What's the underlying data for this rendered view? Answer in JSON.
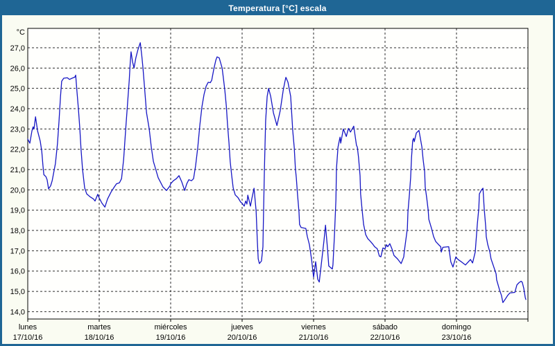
{
  "window": {
    "title": "Temperatura [°C] escala"
  },
  "colors": {
    "title_bar": "#1f6695",
    "frame_border": "#1f6695",
    "content_bg": "#fafcf2",
    "plot_bg": "#fffffd",
    "grid": "#2a2a2a",
    "axis": "#000000",
    "line": "#1515c4",
    "label_text": "#000000",
    "title_text": "#ffffff"
  },
  "chart_data": {
    "type": "line",
    "title": "Temperatura [°C] escala",
    "ylabel": "°C",
    "xlabel": "",
    "ylim": [
      14.0,
      27.0
    ],
    "xlim_hours": [
      0,
      168
    ],
    "grid": "dashed",
    "legend": "none",
    "yticks": [
      {
        "value": 27.0,
        "label": "27,0"
      },
      {
        "value": 26.0,
        "label": "26,0"
      },
      {
        "value": 25.0,
        "label": "25,0"
      },
      {
        "value": 24.0,
        "label": "24,0"
      },
      {
        "value": 23.0,
        "label": "23,0"
      },
      {
        "value": 22.0,
        "label": "22,0"
      },
      {
        "value": 21.0,
        "label": "21,0"
      },
      {
        "value": 20.0,
        "label": "20,0"
      },
      {
        "value": 19.0,
        "label": "19,0"
      },
      {
        "value": 18.0,
        "label": "18,0"
      },
      {
        "value": 17.0,
        "label": "17,0"
      },
      {
        "value": 16.0,
        "label": "16,0"
      },
      {
        "value": 15.0,
        "label": "15,0"
      },
      {
        "value": 14.0,
        "label": "14,0"
      }
    ],
    "xticks": [
      {
        "day": "lunes",
        "date": "17/10/16",
        "day_index": 0
      },
      {
        "day": "martes",
        "date": "18/10/16",
        "day_index": 1
      },
      {
        "day": "miércoles",
        "date": "19/10/16",
        "day_index": 2
      },
      {
        "day": "jueves",
        "date": "20/10/16",
        "day_index": 3
      },
      {
        "day": "viernes",
        "date": "21/10/16",
        "day_index": 4
      },
      {
        "day": "sábado",
        "date": "22/10/16",
        "day_index": 5
      },
      {
        "day": "domingo",
        "date": "23/10/16",
        "day_index": 6
      }
    ],
    "series": [
      {
        "name": "Temperatura",
        "unit": "°C",
        "points": [
          [
            0.0,
            22.5
          ],
          [
            0.7,
            22.3
          ],
          [
            1.4,
            22.9
          ],
          [
            1.8,
            23.1
          ],
          [
            2.1,
            23.0
          ],
          [
            2.6,
            23.6
          ],
          [
            3.3,
            22.9
          ],
          [
            4.2,
            22.4
          ],
          [
            4.7,
            21.9
          ],
          [
            5.1,
            21.2
          ],
          [
            5.4,
            20.75
          ],
          [
            6.1,
            20.65
          ],
          [
            6.5,
            20.5
          ],
          [
            7.0,
            20.05
          ],
          [
            7.7,
            20.2
          ],
          [
            8.2,
            20.45
          ],
          [
            9.3,
            21.3
          ],
          [
            10.0,
            22.3
          ],
          [
            10.5,
            23.4
          ],
          [
            11.0,
            24.6
          ],
          [
            11.4,
            25.35
          ],
          [
            12.1,
            25.5
          ],
          [
            13.3,
            25.52
          ],
          [
            14.0,
            25.44
          ],
          [
            14.9,
            25.5
          ],
          [
            15.8,
            25.55
          ],
          [
            16.1,
            25.65
          ],
          [
            16.5,
            24.9
          ],
          [
            17.0,
            24.0
          ],
          [
            17.5,
            23.0
          ],
          [
            17.9,
            22.0
          ],
          [
            18.4,
            21.0
          ],
          [
            19.1,
            20.1
          ],
          [
            19.8,
            19.8
          ],
          [
            21.0,
            19.65
          ],
          [
            22.1,
            19.55
          ],
          [
            22.6,
            19.45
          ],
          [
            23.5,
            19.78
          ],
          [
            24.0,
            19.6
          ],
          [
            24.9,
            19.35
          ],
          [
            25.9,
            19.15
          ],
          [
            26.8,
            19.55
          ],
          [
            28.0,
            19.9
          ],
          [
            29.1,
            20.15
          ],
          [
            29.8,
            20.3
          ],
          [
            30.8,
            20.35
          ],
          [
            31.5,
            20.55
          ],
          [
            32.2,
            21.5
          ],
          [
            32.9,
            23.0
          ],
          [
            33.7,
            24.6
          ],
          [
            34.1,
            25.4
          ],
          [
            34.4,
            26.2
          ],
          [
            34.7,
            26.8
          ],
          [
            35.2,
            26.3
          ],
          [
            35.7,
            26.0
          ],
          [
            36.3,
            26.5
          ],
          [
            37.0,
            26.9
          ],
          [
            37.8,
            27.25
          ],
          [
            38.3,
            26.6
          ],
          [
            38.7,
            26.0
          ],
          [
            39.2,
            25.1
          ],
          [
            39.9,
            23.8
          ],
          [
            40.8,
            23.0
          ],
          [
            41.5,
            22.1
          ],
          [
            42.2,
            21.4
          ],
          [
            43.1,
            20.95
          ],
          [
            43.8,
            20.6
          ],
          [
            44.5,
            20.4
          ],
          [
            45.4,
            20.15
          ],
          [
            46.6,
            19.97
          ],
          [
            47.8,
            20.2
          ],
          [
            48.0,
            20.3
          ],
          [
            48.9,
            20.45
          ],
          [
            49.9,
            20.55
          ],
          [
            50.8,
            20.7
          ],
          [
            51.7,
            20.4
          ],
          [
            52.7,
            19.97
          ],
          [
            53.4,
            20.3
          ],
          [
            54.1,
            20.5
          ],
          [
            55.0,
            20.45
          ],
          [
            55.7,
            20.55
          ],
          [
            56.4,
            21.2
          ],
          [
            57.1,
            22.1
          ],
          [
            57.8,
            23.2
          ],
          [
            58.5,
            24.1
          ],
          [
            59.2,
            24.7
          ],
          [
            59.9,
            25.1
          ],
          [
            60.6,
            25.3
          ],
          [
            61.3,
            25.28
          ],
          [
            61.8,
            25.4
          ],
          [
            62.5,
            25.95
          ],
          [
            63.2,
            26.4
          ],
          [
            63.6,
            26.55
          ],
          [
            64.3,
            26.5
          ],
          [
            64.8,
            26.25
          ],
          [
            65.3,
            26.0
          ],
          [
            65.7,
            25.5
          ],
          [
            66.2,
            24.9
          ],
          [
            66.7,
            24.1
          ],
          [
            67.1,
            23.2
          ],
          [
            67.6,
            22.3
          ],
          [
            68.0,
            21.4
          ],
          [
            68.5,
            20.7
          ],
          [
            69.0,
            20.1
          ],
          [
            69.7,
            19.75
          ],
          [
            70.6,
            19.62
          ],
          [
            71.5,
            19.4
          ],
          [
            72.0,
            19.34
          ],
          [
            72.7,
            19.2
          ],
          [
            73.2,
            19.45
          ],
          [
            73.6,
            19.3
          ],
          [
            73.9,
            19.74
          ],
          [
            74.8,
            19.2
          ],
          [
            75.3,
            19.6
          ],
          [
            76.0,
            20.08
          ],
          [
            76.7,
            18.95
          ],
          [
            77.1,
            17.5
          ],
          [
            77.4,
            16.6
          ],
          [
            77.8,
            16.37
          ],
          [
            78.5,
            16.5
          ],
          [
            79.0,
            17.2
          ],
          [
            79.2,
            18.9
          ],
          [
            79.5,
            21.1
          ],
          [
            79.9,
            23.4
          ],
          [
            80.4,
            24.6
          ],
          [
            80.9,
            25.0
          ],
          [
            81.6,
            24.6
          ],
          [
            82.5,
            23.8
          ],
          [
            83.7,
            23.17
          ],
          [
            84.8,
            23.9
          ],
          [
            85.8,
            24.9
          ],
          [
            86.4,
            25.35
          ],
          [
            86.7,
            25.54
          ],
          [
            87.4,
            25.3
          ],
          [
            88.3,
            24.6
          ],
          [
            89.0,
            22.9
          ],
          [
            89.5,
            22.1
          ],
          [
            89.9,
            21.05
          ],
          [
            90.2,
            20.6
          ],
          [
            90.6,
            19.8
          ],
          [
            91.1,
            18.9
          ],
          [
            91.3,
            18.3
          ],
          [
            91.8,
            18.15
          ],
          [
            93.4,
            18.1
          ],
          [
            93.9,
            17.7
          ],
          [
            94.6,
            17.3
          ],
          [
            95.3,
            16.6
          ],
          [
            96.0,
            15.7
          ],
          [
            96.7,
            16.46
          ],
          [
            97.4,
            15.6
          ],
          [
            97.9,
            15.46
          ],
          [
            98.8,
            16.6
          ],
          [
            99.5,
            17.5
          ],
          [
            100.0,
            18.26
          ],
          [
            100.7,
            17.05
          ],
          [
            101.1,
            16.25
          ],
          [
            102.3,
            16.1
          ],
          [
            102.5,
            16.3
          ],
          [
            103.0,
            17.7
          ],
          [
            103.5,
            19.5
          ],
          [
            103.7,
            21.05
          ],
          [
            104.2,
            22.1
          ],
          [
            104.6,
            22.4
          ],
          [
            104.9,
            22.6
          ],
          [
            105.1,
            22.3
          ],
          [
            105.8,
            22.85
          ],
          [
            106.0,
            23.0
          ],
          [
            107.0,
            22.63
          ],
          [
            107.7,
            23.03
          ],
          [
            108.4,
            22.85
          ],
          [
            109.5,
            23.14
          ],
          [
            110.4,
            22.2
          ],
          [
            110.7,
            22.1
          ],
          [
            111.1,
            21.6
          ],
          [
            111.6,
            20.7
          ],
          [
            111.8,
            19.8
          ],
          [
            112.3,
            19.0
          ],
          [
            112.8,
            18.3
          ],
          [
            113.5,
            17.8
          ],
          [
            114.2,
            17.6
          ],
          [
            115.1,
            17.46
          ],
          [
            115.8,
            17.34
          ],
          [
            116.5,
            17.2
          ],
          [
            117.4,
            17.1
          ],
          [
            118.1,
            16.74
          ],
          [
            118.6,
            16.7
          ],
          [
            119.3,
            17.14
          ],
          [
            120.0,
            17.1
          ],
          [
            120.5,
            17.3
          ],
          [
            120.9,
            17.2
          ],
          [
            121.6,
            17.35
          ],
          [
            122.3,
            17.1
          ],
          [
            123.0,
            16.77
          ],
          [
            124.2,
            16.6
          ],
          [
            125.4,
            16.37
          ],
          [
            126.3,
            16.7
          ],
          [
            126.5,
            17.0
          ],
          [
            127.5,
            18.1
          ],
          [
            127.7,
            18.9
          ],
          [
            128.2,
            19.8
          ],
          [
            128.6,
            20.6
          ],
          [
            128.9,
            21.6
          ],
          [
            129.3,
            22.43
          ],
          [
            129.6,
            22.54
          ],
          [
            129.8,
            22.37
          ],
          [
            130.5,
            22.8
          ],
          [
            131.4,
            22.93
          ],
          [
            132.4,
            22.1
          ],
          [
            132.8,
            21.5
          ],
          [
            133.3,
            20.9
          ],
          [
            133.5,
            20.15
          ],
          [
            134.0,
            19.6
          ],
          [
            134.5,
            19.0
          ],
          [
            134.7,
            18.55
          ],
          [
            135.6,
            18.1
          ],
          [
            136.3,
            17.7
          ],
          [
            137.0,
            17.46
          ],
          [
            138.0,
            17.3
          ],
          [
            138.7,
            17.2
          ],
          [
            138.9,
            16.94
          ],
          [
            139.4,
            17.17
          ],
          [
            141.4,
            17.2
          ],
          [
            142.1,
            16.46
          ],
          [
            142.8,
            16.2
          ],
          [
            143.8,
            16.7
          ],
          [
            144.0,
            16.65
          ],
          [
            144.7,
            16.55
          ],
          [
            145.6,
            16.46
          ],
          [
            147.0,
            16.3
          ],
          [
            148.7,
            16.57
          ],
          [
            149.4,
            16.4
          ],
          [
            150.3,
            16.94
          ],
          [
            151.0,
            18.3
          ],
          [
            151.5,
            19.1
          ],
          [
            151.7,
            19.8
          ],
          [
            152.4,
            20.0
          ],
          [
            152.9,
            20.08
          ],
          [
            153.3,
            19.1
          ],
          [
            153.8,
            18.2
          ],
          [
            154.0,
            17.7
          ],
          [
            154.5,
            17.3
          ],
          [
            155.2,
            16.94
          ],
          [
            155.6,
            16.6
          ],
          [
            156.4,
            16.26
          ],
          [
            157.3,
            15.86
          ],
          [
            157.5,
            15.57
          ],
          [
            158.4,
            15.1
          ],
          [
            159.1,
            14.8
          ],
          [
            159.6,
            14.45
          ],
          [
            160.3,
            14.6
          ],
          [
            161.2,
            14.8
          ],
          [
            161.9,
            14.92
          ],
          [
            163.6,
            14.95
          ],
          [
            164.3,
            15.32
          ],
          [
            165.0,
            15.43
          ],
          [
            165.7,
            15.5
          ],
          [
            166.1,
            15.45
          ],
          [
            166.6,
            15.15
          ],
          [
            167.1,
            14.7
          ],
          [
            167.3,
            14.6
          ]
        ]
      }
    ]
  }
}
